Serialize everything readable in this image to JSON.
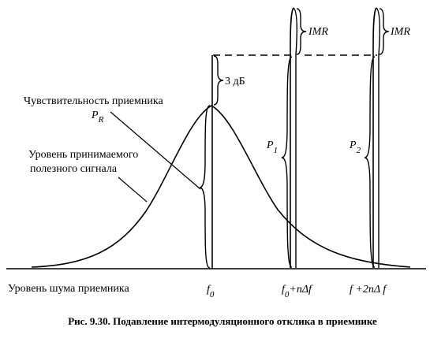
{
  "labels": {
    "sensitivity": "Чувствительность приемника",
    "pr_symbol": "P",
    "pr_sub": "R",
    "useful_line1": "Уровень принимаемого",
    "useful_line2": "полезного сигнала",
    "noise_level": "Уровень шума приемника",
    "three_db": "3 дБ",
    "imr_1": "IMR",
    "imr_2": "IMR",
    "p1_symbol": "P",
    "p1_sub": "1",
    "p2_symbol": "P",
    "p2_sub": "2"
  },
  "axis": {
    "f0_symbol": "f",
    "f0_sub": "0",
    "f1_symbol": "f",
    "f1_sub": "0",
    "f1_rest": "+nΔf",
    "f2_text": "f +2nΔ f"
  },
  "caption": "Рис. 9.30. Подавление интермодуляционного отклика в приемнике"
}
